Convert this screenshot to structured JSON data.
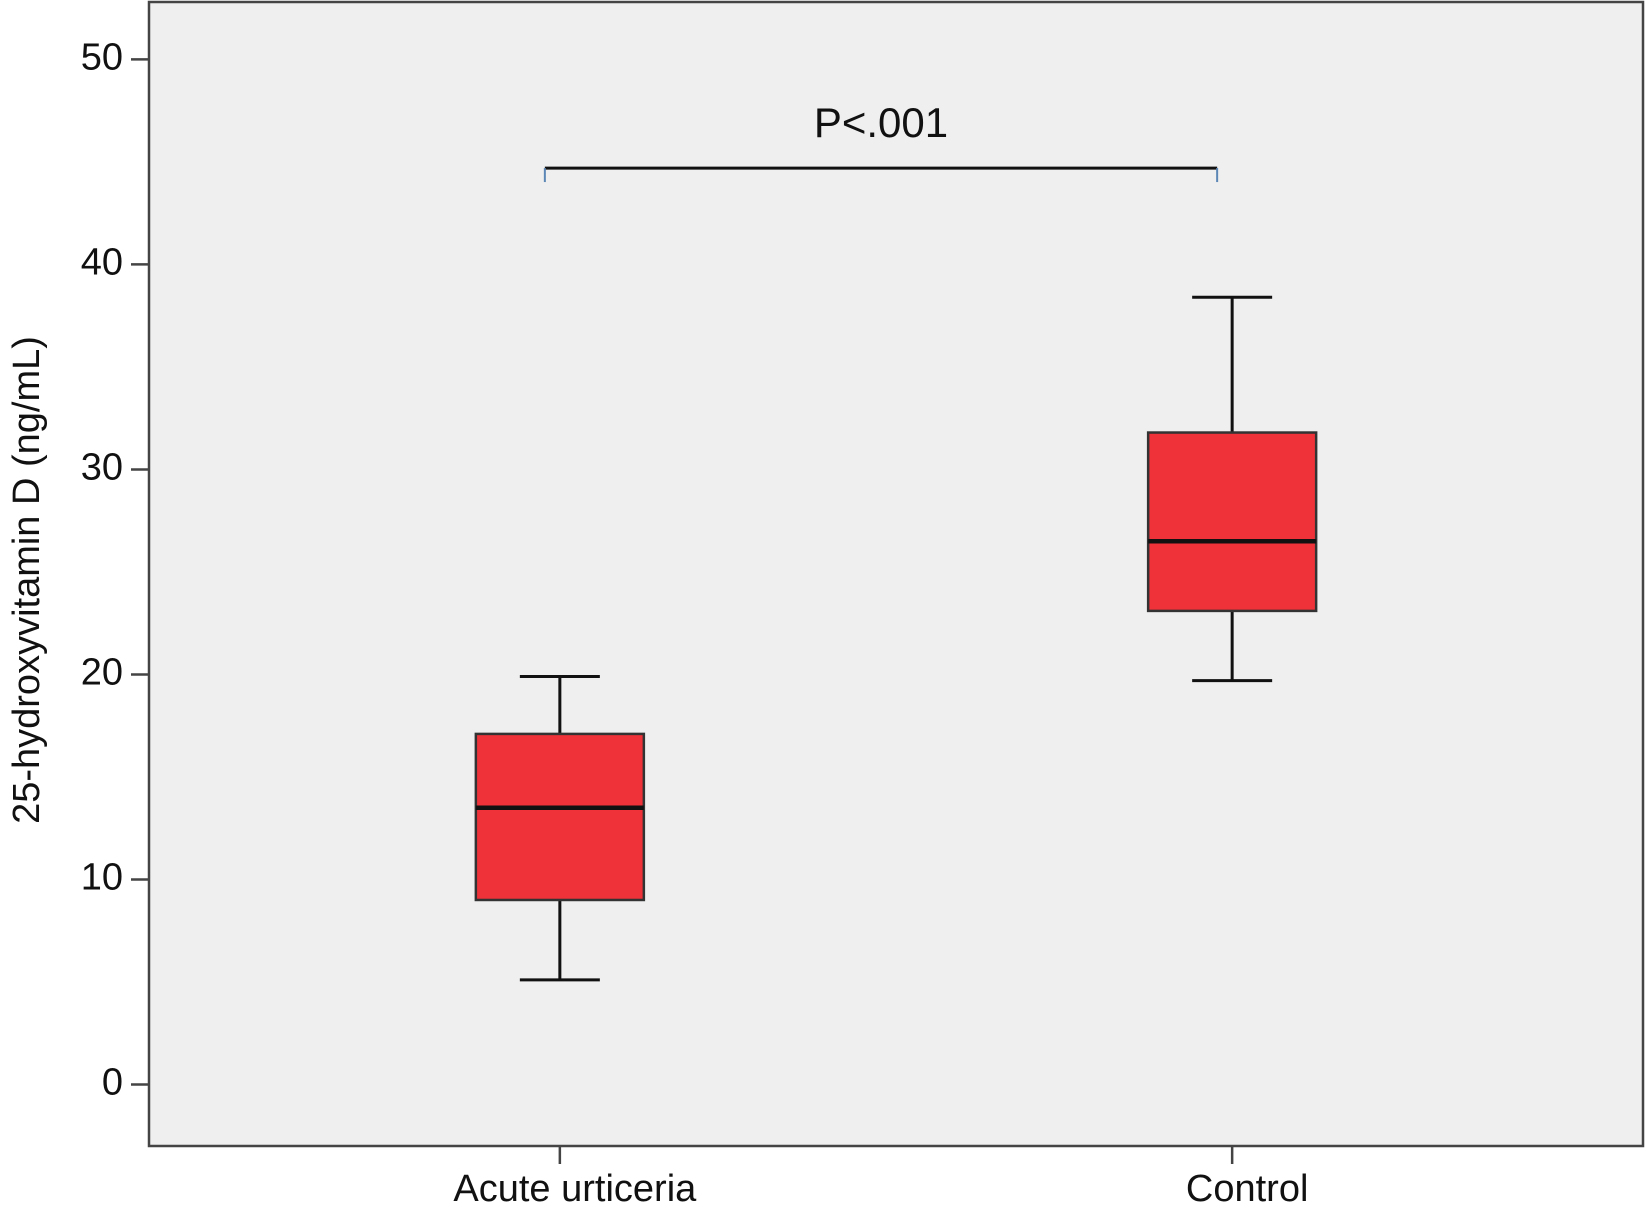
{
  "chart_data": {
    "type": "box",
    "y_label": "25-hydroxyvitamin D (ng/mL)",
    "categories": [
      "Acute urticeria",
      "Control"
    ],
    "boxes": [
      {
        "whisker_low": 5.1,
        "q1": 9.0,
        "median": 13.5,
        "q3": 17.1,
        "whisker_high": 19.9
      },
      {
        "whisker_low": 19.7,
        "q1": 23.1,
        "median": 26.5,
        "q3": 31.8,
        "whisker_high": 38.4
      }
    ],
    "color": "#ef3239",
    "background": "#efefef",
    "ylim": [
      -3,
      52.8
    ],
    "yticks": [
      0,
      10,
      20,
      30,
      40,
      50
    ],
    "annotation": {
      "text": "P<.001",
      "y": 44.7
    }
  }
}
